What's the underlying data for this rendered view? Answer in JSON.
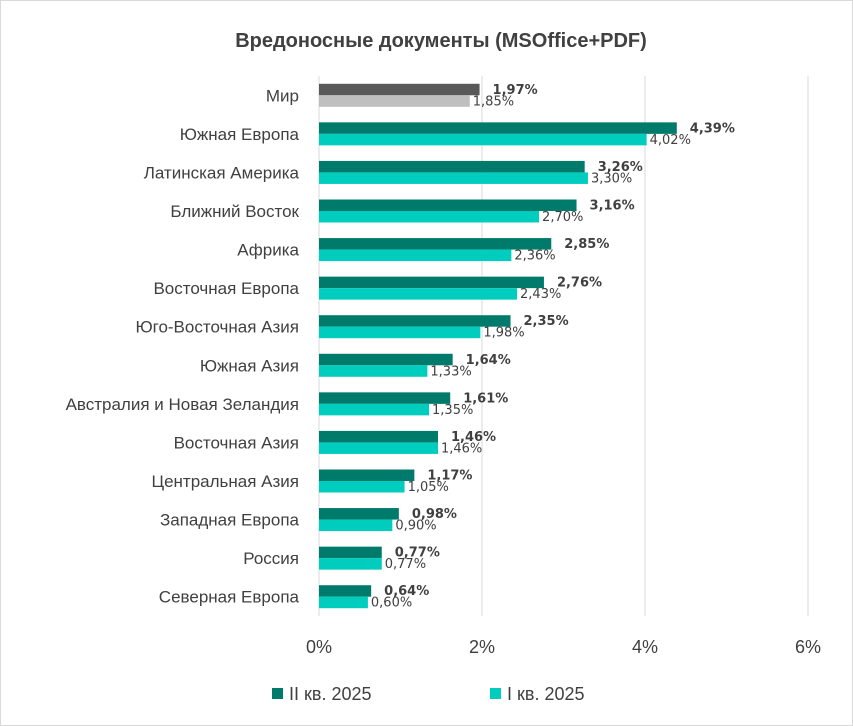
{
  "chart_data": {
    "type": "bar",
    "orientation": "horizontal",
    "title": "Вредоносные документы (MSOffice+PDF)",
    "categories": [
      "Мир",
      "Южная Европа",
      "Латинская Америка",
      "Ближний Восток",
      "Африка",
      "Восточная Европа",
      "Юго-Восточная Азия",
      "Южная Азия",
      "Австралия и Новая Зеландия",
      "Восточная Азия",
      "Центральная Азия",
      "Западная Европа",
      "Россия",
      "Северная Европа"
    ],
    "series": [
      {
        "name": "II кв. 2025",
        "color": "#007a6a",
        "highlight_color": "#595959",
        "values": [
          1.97,
          4.39,
          3.26,
          3.16,
          2.85,
          2.76,
          2.35,
          1.64,
          1.61,
          1.46,
          1.17,
          0.98,
          0.77,
          0.64
        ],
        "labels": [
          "1,97%",
          "4,39%",
          "3,26%",
          "3,16%",
          "2,85%",
          "2,76%",
          "2,35%",
          "1,64%",
          "1,61%",
          "1,46%",
          "1,17%",
          "0,98%",
          "0,77%",
          "0,64%"
        ]
      },
      {
        "name": "I кв. 2025",
        "color": "#00cdbe",
        "highlight_color": "#bfbfbf",
        "values": [
          1.85,
          4.02,
          3.3,
          2.7,
          2.36,
          2.43,
          1.98,
          1.33,
          1.35,
          1.46,
          1.05,
          0.9,
          0.77,
          0.6
        ],
        "labels": [
          "1,85%",
          "4,02%",
          "3,30%",
          "2,70%",
          "2,36%",
          "2,43%",
          "1,98%",
          "1,33%",
          "1,35%",
          "1,46%",
          "1,05%",
          "0,90%",
          "0,77%",
          "0,60%"
        ]
      }
    ],
    "xlim": [
      0,
      6
    ],
    "xticks": [
      0,
      2,
      4,
      6
    ],
    "xtick_labels": [
      "0%",
      "2%",
      "4%",
      "6%"
    ],
    "grid": true,
    "legend_position": "bottom"
  }
}
